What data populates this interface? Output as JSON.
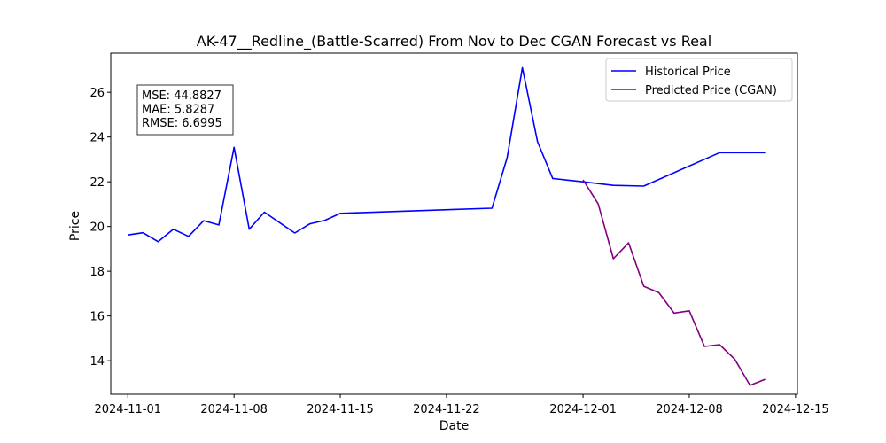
{
  "chart_data": {
    "type": "line",
    "title": "AK-47__Redline_(Battle-Scarred) From Nov to Dec CGAN Forecast vs Real",
    "xlabel": "Date",
    "ylabel": "Price",
    "xlim": [
      "2024-10-30T21:00",
      "2024-12-15T03:00"
    ],
    "ylim": [
      12.5,
      27.75
    ],
    "x_ticks": [
      "2024-11-01",
      "2024-11-08",
      "2024-11-15",
      "2024-11-22",
      "2024-12-01",
      "2024-12-08",
      "2024-12-15"
    ],
    "y_ticks": [
      14,
      16,
      18,
      20,
      22,
      24,
      26
    ],
    "legend_position": "top-right",
    "metrics": [
      "MSE: 44.8827",
      "MAE: 5.8287",
      "RMSE: 6.6995"
    ],
    "series": [
      {
        "name": "Historical Price",
        "color": "#0000ff",
        "x": [
          "2024-11-01",
          "2024-11-02",
          "2024-11-03",
          "2024-11-04",
          "2024-11-05",
          "2024-11-06",
          "2024-11-07",
          "2024-11-08",
          "2024-11-09",
          "2024-11-10",
          "2024-11-12",
          "2024-11-13",
          "2024-11-14",
          "2024-11-15",
          "2024-11-25",
          "2024-11-26",
          "2024-11-27",
          "2024-11-28",
          "2024-11-29",
          "2024-12-01",
          "2024-12-03",
          "2024-12-05",
          "2024-12-10",
          "2024-12-13"
        ],
        "values": [
          19.62,
          19.72,
          19.32,
          19.88,
          19.56,
          20.26,
          20.07,
          23.54,
          19.88,
          20.64,
          19.71,
          20.12,
          20.28,
          20.59,
          20.82,
          23.08,
          27.1,
          23.79,
          22.15,
          22.0,
          21.84,
          21.81,
          23.3,
          23.3
        ]
      },
      {
        "name": "Predicted Price (CGAN)",
        "color": "#800080",
        "x": [
          "2024-12-01",
          "2024-12-02",
          "2024-12-03",
          "2024-12-04",
          "2024-12-05",
          "2024-12-06",
          "2024-12-07",
          "2024-12-08",
          "2024-12-09",
          "2024-12-10",
          "2024-12-11",
          "2024-12-12",
          "2024-12-13"
        ],
        "values": [
          22.08,
          21.01,
          18.56,
          19.27,
          17.33,
          17.04,
          16.13,
          16.23,
          14.64,
          14.72,
          14.06,
          12.9,
          13.17
        ]
      }
    ]
  }
}
